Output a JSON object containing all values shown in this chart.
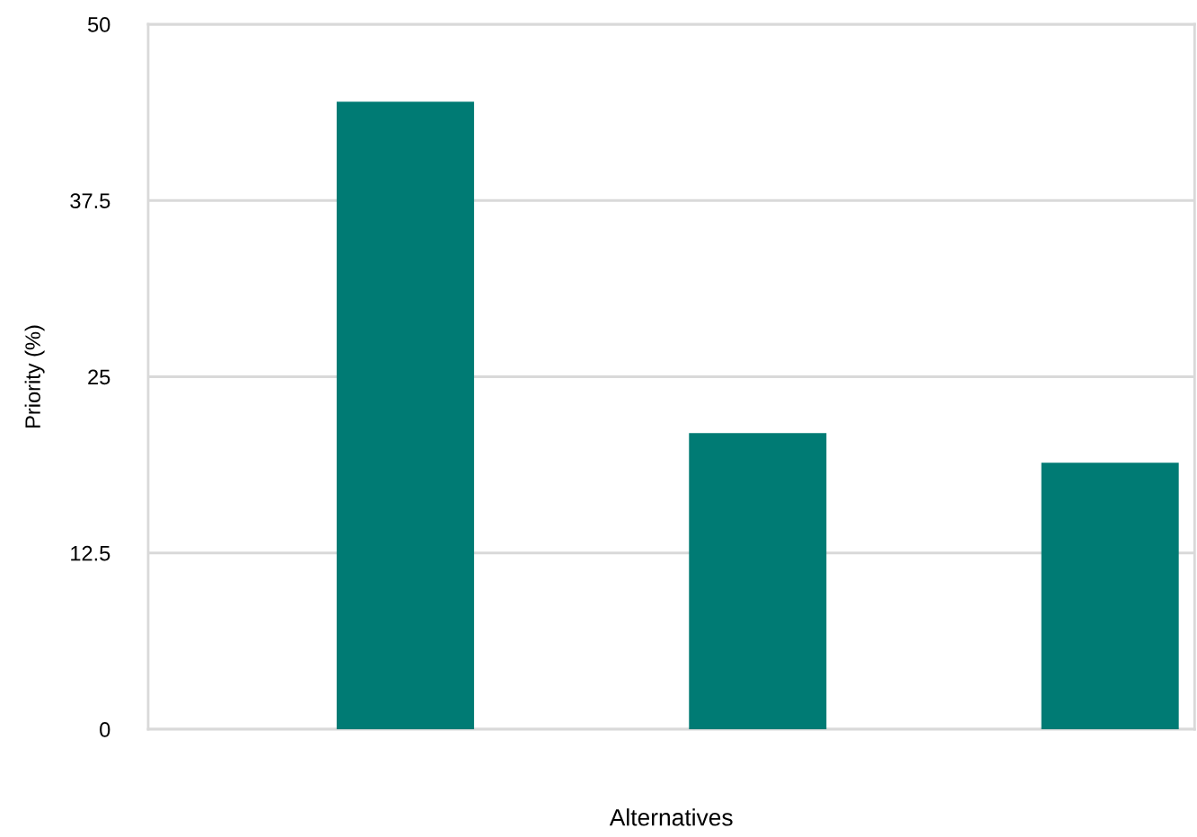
{
  "chart_data": {
    "type": "bar",
    "xlabel": "Alternatives",
    "ylabel": "Priority (%)",
    "categories": [
      null,
      null,
      null
    ],
    "values": [
      44.5,
      21,
      18.9
    ],
    "color": "#007b74",
    "ylim": [
      0,
      50
    ],
    "yticks": [
      0,
      12.5,
      25,
      37.5,
      50
    ],
    "grid": "y",
    "legend": false
  }
}
